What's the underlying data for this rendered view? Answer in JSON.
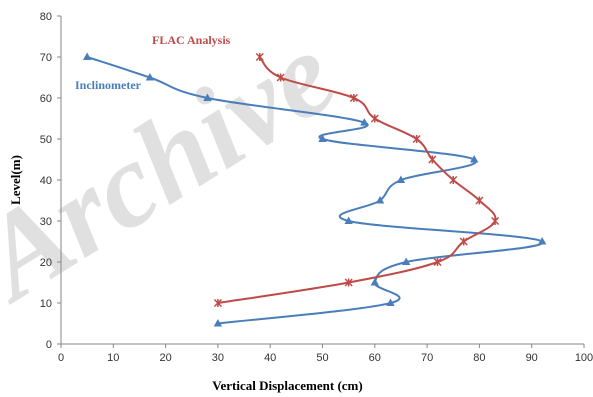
{
  "chart_data": {
    "type": "line",
    "title": "",
    "xlabel": "Vertical Displacement (cm)",
    "ylabel": "Level(m)",
    "xlim": [
      0,
      100
    ],
    "ylim": [
      0,
      80
    ],
    "xticks": [
      "0",
      "10",
      "20",
      "30",
      "40",
      "50",
      "60",
      "70",
      "80",
      "90",
      "100"
    ],
    "yticks": [
      "0",
      "10",
      "20",
      "30",
      "40",
      "50",
      "60",
      "70",
      "80"
    ],
    "grid": false,
    "legend": "inline labels",
    "watermark": "Archive",
    "series": [
      {
        "name": "Inclinometer",
        "color": "#4a7ebb",
        "marker": "triangle",
        "points": [
          {
            "x": 5,
            "y": 70
          },
          {
            "x": 17,
            "y": 65
          },
          {
            "x": 28,
            "y": 60
          },
          {
            "x": 58,
            "y": 54
          },
          {
            "x": 50,
            "y": 50
          },
          {
            "x": 79,
            "y": 45
          },
          {
            "x": 65,
            "y": 40
          },
          {
            "x": 61,
            "y": 35
          },
          {
            "x": 55,
            "y": 30
          },
          {
            "x": 92,
            "y": 25
          },
          {
            "x": 66,
            "y": 20
          },
          {
            "x": 60,
            "y": 15
          },
          {
            "x": 63,
            "y": 10
          },
          {
            "x": 30,
            "y": 5
          }
        ]
      },
      {
        "name": "FLAC  Analysis",
        "color": "#be4b48",
        "marker": "star",
        "points": [
          {
            "x": 38,
            "y": 70
          },
          {
            "x": 42,
            "y": 65
          },
          {
            "x": 56,
            "y": 60
          },
          {
            "x": 60,
            "y": 55
          },
          {
            "x": 68,
            "y": 50
          },
          {
            "x": 71,
            "y": 45
          },
          {
            "x": 75,
            "y": 40
          },
          {
            "x": 80,
            "y": 35
          },
          {
            "x": 83,
            "y": 30
          },
          {
            "x": 77,
            "y": 25
          },
          {
            "x": 72,
            "y": 20
          },
          {
            "x": 55,
            "y": 15
          },
          {
            "x": 30,
            "y": 10
          }
        ]
      }
    ]
  }
}
